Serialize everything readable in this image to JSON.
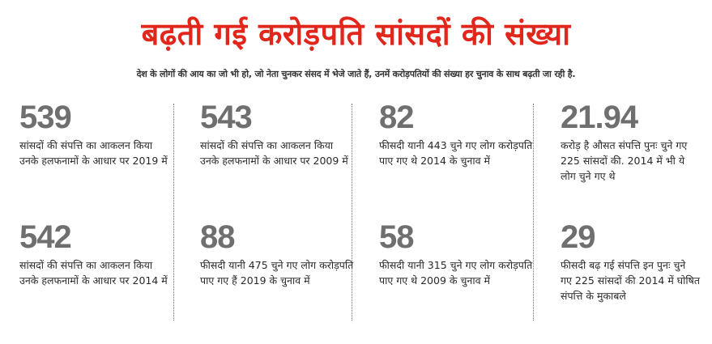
{
  "headline": "बढ़ती गई करोड़पति सांसदों की संख्या",
  "subtitle": "देश के लोगों की आय का जो भी हो, जो नेता चुनकर संसद में भेजे जाते हैं, उनमें करोड़पतियों की संख्या हर चुनाव के साथ बढ़ती जा रही है.",
  "stats": [
    {
      "number": "539",
      "text": "सांसदों की संपत्ति का आकलन किया उनके हलफनामों के आधार पर 2019 में"
    },
    {
      "number": "543",
      "text": "सांसदों की संपत्ति का आकलन किया उनके हलफनामों के आधार पर 2009 में"
    },
    {
      "number": "82",
      "text": "फीसदी यानी 443 चुने गए लोग करोड़पति पाए गए थे 2014 के चुनाव में"
    },
    {
      "number": "21.94",
      "text": "करोड़ है औसत संपत्ति पुनः चुने गए 225 सांसदों की. 2014 में भी ये लोग चुने गए थे"
    },
    {
      "number": "542",
      "text": "सांसदों की संपत्ति का आकलन किया उनके हलफनामों के आधार पर 2014 में"
    },
    {
      "number": "88",
      "text": "फीसदी यानी 475 चुने गए लोग करोड़पति पाए गए हैं 2019 के चुनाव में"
    },
    {
      "number": "58",
      "text": "फीसदी यानी 315 चुने गए लोग करोड़पति पाए गए थे 2009 के चुनाव में"
    },
    {
      "number": "29",
      "text": "फीसदी बढ़ गई संपत्ति इन पुनः चुने गए 225 सांसदों की 2014 में घोषित संपत्ति के मुकाबले"
    }
  ]
}
